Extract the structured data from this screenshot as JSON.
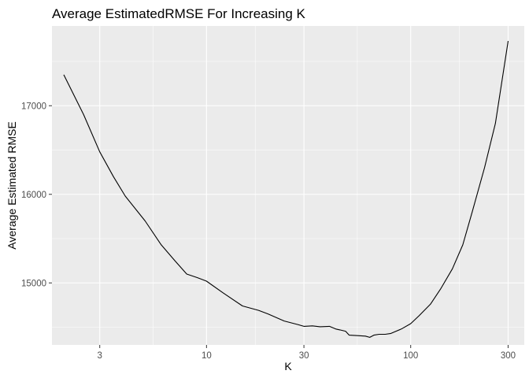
{
  "chart_data": {
    "type": "line",
    "title": "Average EstimatedRMSE For Increasing K",
    "xlabel": "K",
    "ylabel": "Average Estimated RMSE",
    "x_scale": "log10",
    "xlim": [
      1.75,
      360
    ],
    "ylim": [
      14300,
      17900
    ],
    "x_ticks": [
      {
        "value": 3,
        "label": "3"
      },
      {
        "value": 10,
        "label": "10"
      },
      {
        "value": 30,
        "label": "30"
      },
      {
        "value": 100,
        "label": "100"
      },
      {
        "value": 300,
        "label": "300"
      }
    ],
    "y_ticks": [
      {
        "value": 15000,
        "label": "15000"
      },
      {
        "value": 16000,
        "label": "16000"
      },
      {
        "value": 17000,
        "label": "17000"
      }
    ],
    "grid": true,
    "legend": "none",
    "colors": {
      "panel": "#ebebeb",
      "grid_major": "#ffffff",
      "line": "#000000",
      "tick_text": "#4d4d4d"
    },
    "series": [
      {
        "x": [
          2,
          2.5,
          3,
          3.5,
          4,
          5,
          6,
          7,
          8,
          9,
          10,
          12,
          15,
          18,
          20,
          24,
          28,
          30,
          33,
          36,
          40,
          43,
          45,
          48,
          50,
          55,
          60,
          63,
          66,
          70,
          75,
          80,
          90,
          100,
          110,
          125,
          140,
          160,
          180,
          200,
          230,
          260,
          300
        ],
        "y": [
          17350,
          16900,
          16480,
          16200,
          15980,
          15700,
          15430,
          15250,
          15100,
          15060,
          15020,
          14890,
          14740,
          14690,
          14650,
          14570,
          14530,
          14510,
          14515,
          14505,
          14510,
          14480,
          14470,
          14455,
          14410,
          14405,
          14400,
          14385,
          14410,
          14420,
          14420,
          14430,
          14480,
          14540,
          14630,
          14760,
          14930,
          15160,
          15430,
          15800,
          16300,
          16800,
          17730
        ]
      }
    ]
  }
}
